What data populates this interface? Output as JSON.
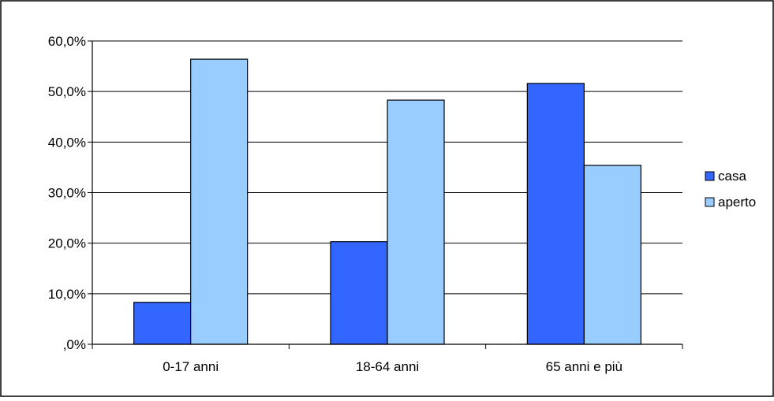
{
  "chart_data": {
    "type": "bar",
    "title": "",
    "xlabel": "",
    "ylabel": "",
    "categories": [
      "0-17 anni",
      "18-64 anni",
      "65 anni e più"
    ],
    "series": [
      {
        "name": "casa",
        "values": [
          8.3,
          20.3,
          51.6
        ],
        "color": "#3366ff"
      },
      {
        "name": "aperto",
        "values": [
          56.4,
          48.3,
          35.4
        ],
        "color": "#99ccff"
      }
    ],
    "ylim": [
      0,
      60
    ],
    "yticks": [
      0,
      10,
      20,
      30,
      40,
      50,
      60
    ],
    "ytick_labels": [
      ",0%",
      "10,0%",
      "20,0%",
      "30,0%",
      "40,0%",
      "50,0%",
      "60,0%"
    ],
    "grid": true,
    "legend": "right"
  }
}
